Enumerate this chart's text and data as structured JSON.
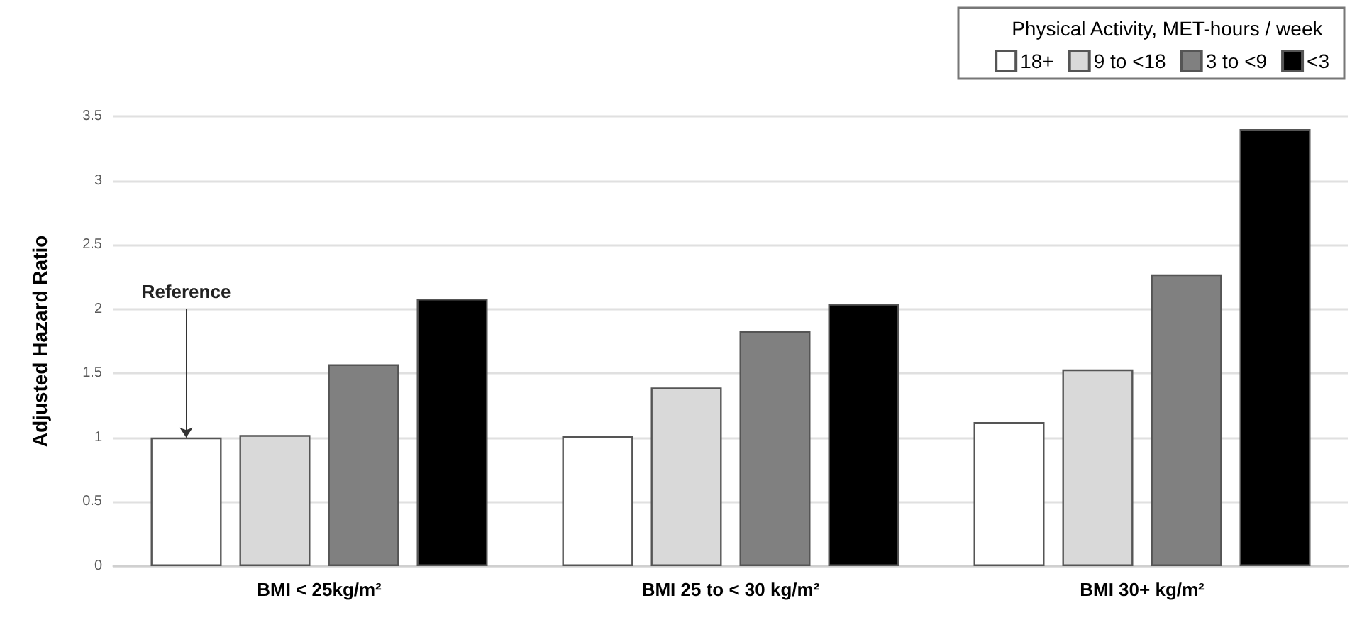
{
  "chart_data": {
    "type": "bar",
    "ylabel": "Adjusted Hazard Ratio",
    "legend_title": "Physical Activity, MET-hours / week",
    "categories": [
      "BMI < 25kg/m²",
      "BMI 25 to < 30 kg/m²",
      "BMI 30+ kg/m²"
    ],
    "series": [
      {
        "name": "18+",
        "color": "#ffffff",
        "values": [
          1.0,
          1.01,
          1.12
        ]
      },
      {
        "name": "9 to <18",
        "color": "#d9d9d9",
        "values": [
          1.02,
          1.39,
          1.53
        ]
      },
      {
        "name": "3 to <9",
        "color": "#808080",
        "values": [
          1.57,
          1.83,
          2.27
        ]
      },
      {
        "name": "<3",
        "color": "#000000",
        "values": [
          2.08,
          2.04,
          3.4
        ]
      }
    ],
    "ylim": [
      0,
      3.5
    ],
    "yticks": [
      0,
      0.5,
      1,
      1.5,
      2,
      2.5,
      3,
      3.5
    ],
    "grid": "y",
    "legend": "top right",
    "annotations": [
      {
        "text": "Reference",
        "y": 1
      }
    ]
  }
}
